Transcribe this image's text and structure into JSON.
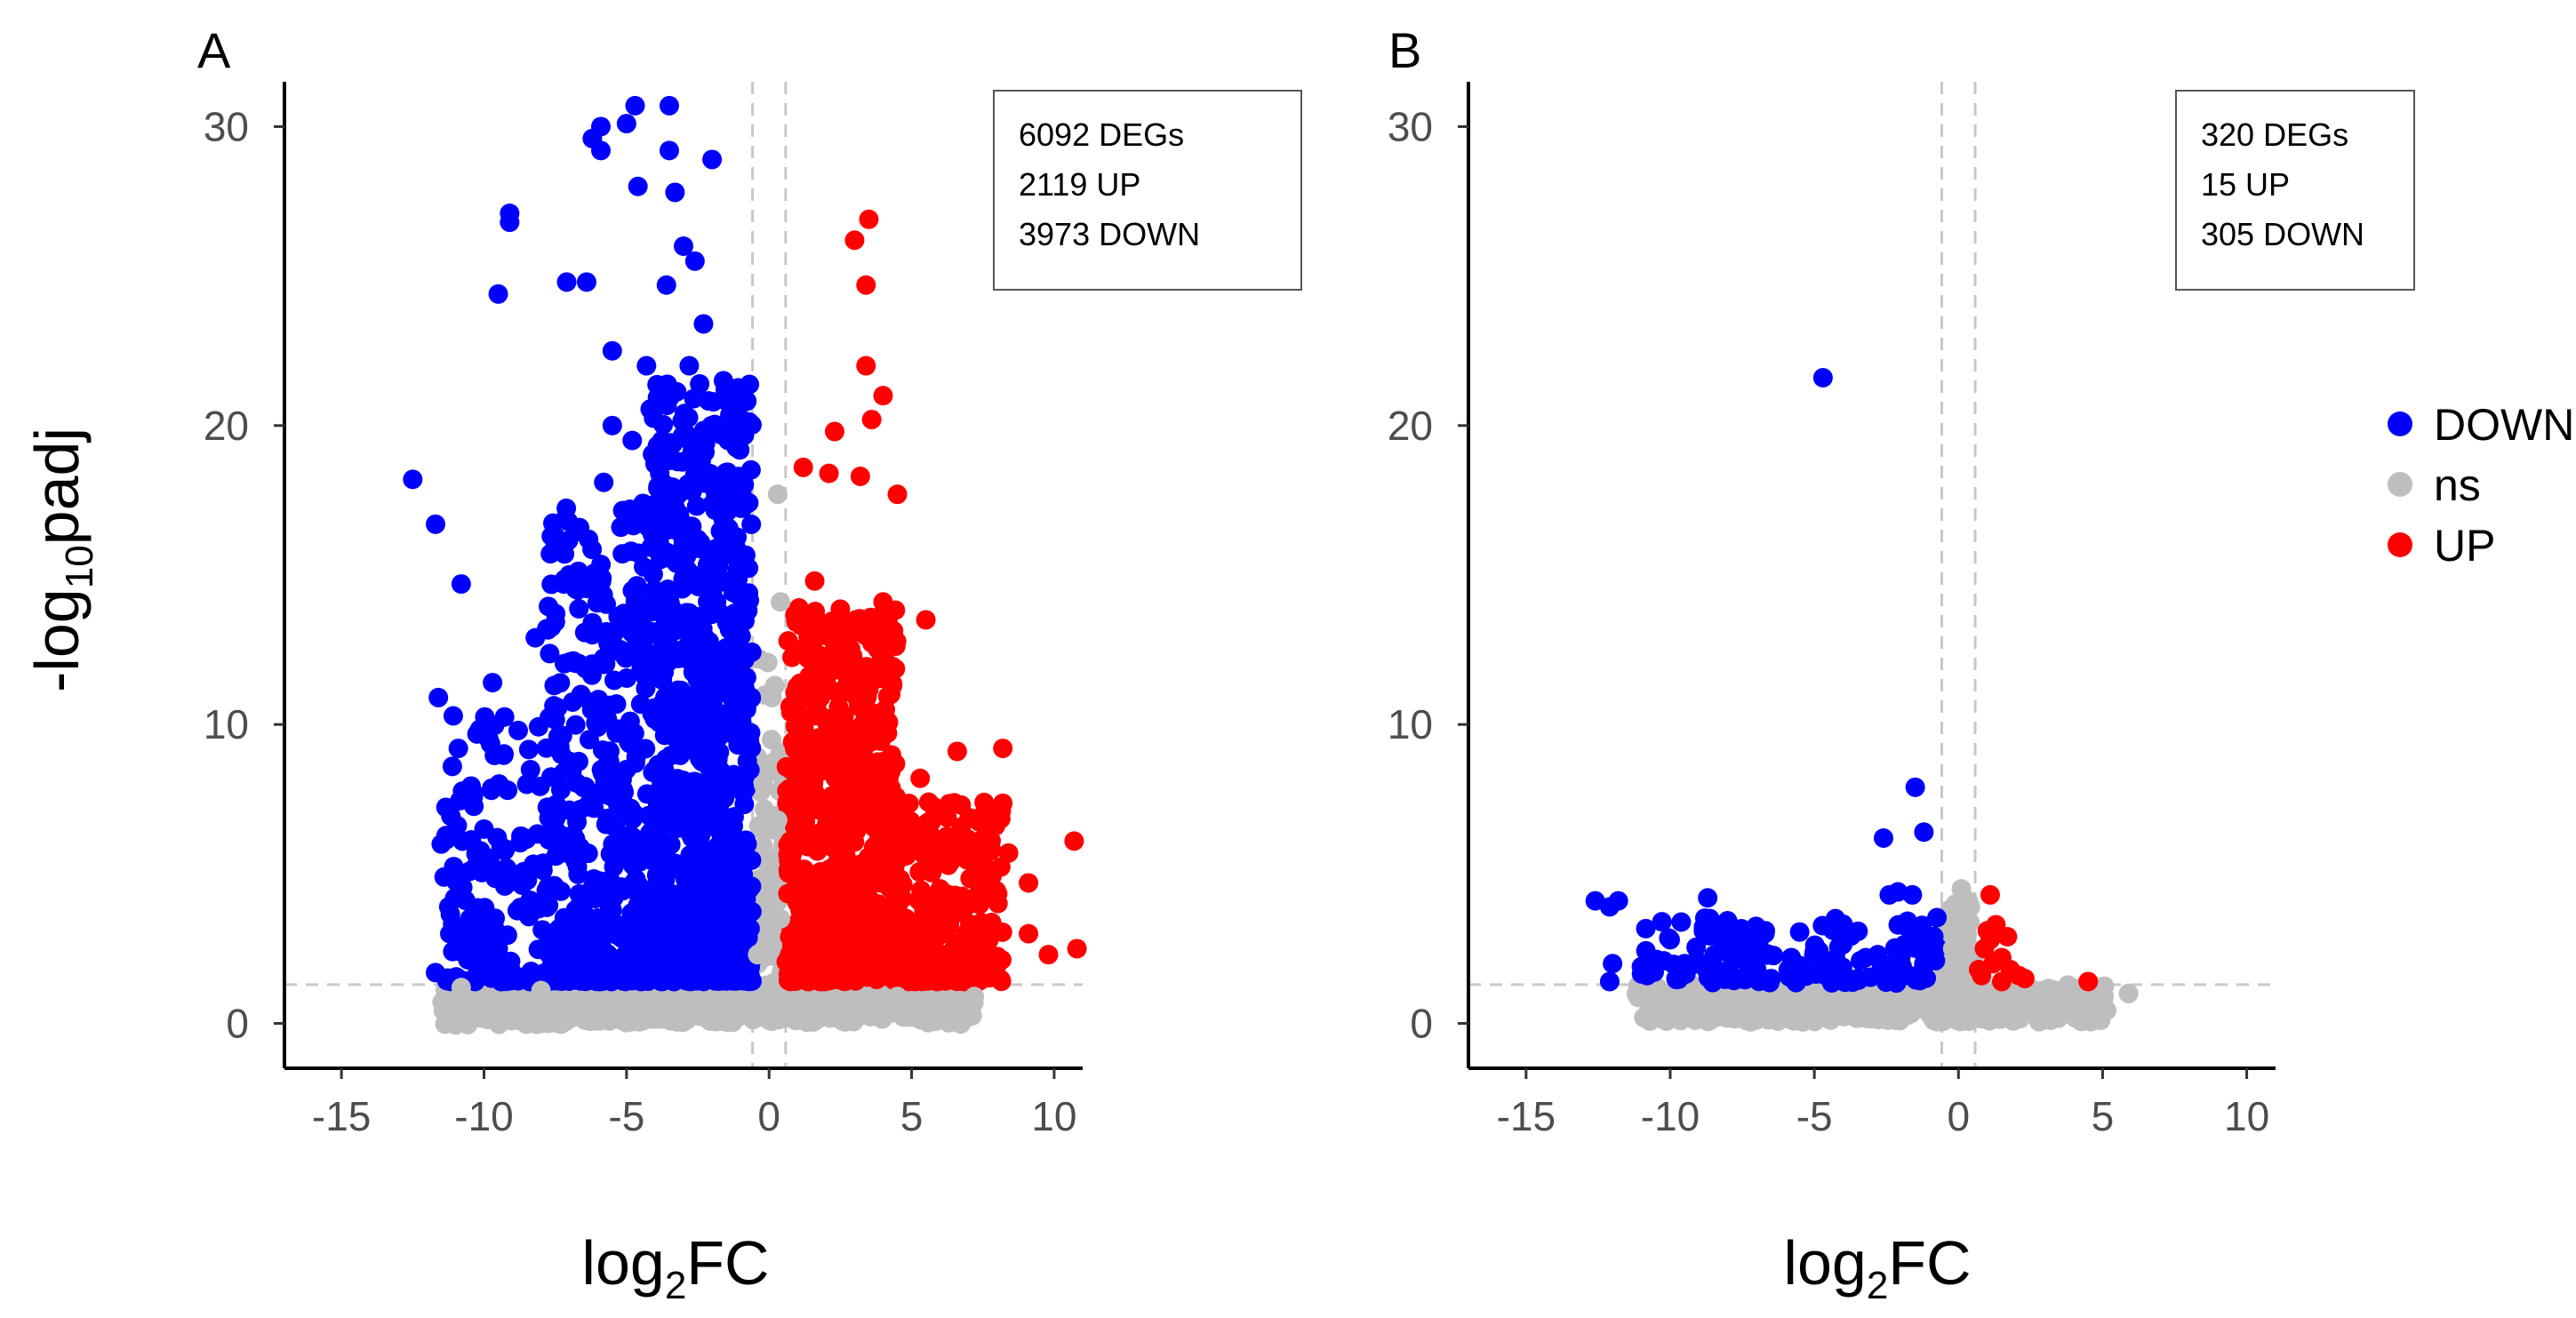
{
  "figure": {
    "y_axis_title": {
      "prefix": "-log",
      "sub": "10",
      "suffix": "padj"
    },
    "x_axis_title": {
      "prefix": "log",
      "sub": "2",
      "suffix": "FC"
    },
    "legend": [
      {
        "label": "DOWN",
        "color": "#0000ff"
      },
      {
        "label": "ns",
        "color": "#bebebe"
      },
      {
        "label": "UP",
        "color": "#ff0000"
      }
    ]
  },
  "chart_data": [
    {
      "type": "scatter",
      "panel": "A",
      "xlabel": "log2FC",
      "ylabel": "-log10padj",
      "xlim": [
        -17,
        11
      ],
      "ylim": [
        -1.5,
        31.5
      ],
      "xticks": [
        -15,
        -10,
        -5,
        0,
        5,
        10
      ],
      "yticks": [
        0,
        10,
        20,
        30
      ],
      "xtick_labels": [
        "-15",
        "-10",
        "-5",
        "0",
        "5",
        "10"
      ],
      "ytick_labels": [
        "0",
        "10",
        "20",
        "30"
      ],
      "thresholds": {
        "log2fc": [
          -0.58,
          0.58
        ],
        "padj_line": 1.3
      },
      "annotation": [
        "6092 DEGs",
        "2119 UP",
        "3973 DOWN"
      ],
      "colors": {
        "DOWN": "#0000ff",
        "ns": "#bebebe",
        "UP": "#ff0000"
      },
      "series": [
        {
          "name": "DOWN",
          "points": [
            [
              -12.5,
              18.2
            ],
            [
              -11.7,
              16.7
            ],
            [
              -10.8,
              14.7
            ],
            [
              -10.9,
              9.2
            ],
            [
              -11.6,
              10.9
            ],
            [
              -11.5,
              6.0
            ],
            [
              -11.2,
              3.0
            ],
            [
              -11.7,
              1.7
            ],
            [
              -9.5,
              24.4
            ],
            [
              -9.1,
              27.1
            ],
            [
              -9.1,
              26.8
            ],
            [
              -8.8,
              9.8
            ],
            [
              -9.7,
              11.4
            ],
            [
              -8.2,
              12.9
            ],
            [
              -7.8,
              13.2
            ],
            [
              -7.5,
              16.0
            ],
            [
              -7.2,
              14.7
            ],
            [
              -7.1,
              24.8
            ],
            [
              -6.4,
              24.8
            ],
            [
              -6.2,
              29.6
            ],
            [
              -5.9,
              29.2
            ],
            [
              -5.9,
              30.0
            ],
            [
              -5.0,
              30.1
            ],
            [
              -4.7,
              30.7
            ],
            [
              -3.5,
              30.7
            ],
            [
              -3.5,
              29.2
            ],
            [
              -2.0,
              28.9
            ],
            [
              -4.6,
              28.0
            ],
            [
              -3.3,
              27.8
            ],
            [
              -2.6,
              25.5
            ],
            [
              -6.2,
              13.0
            ],
            [
              -5.5,
              20.0
            ],
            [
              -4.3,
              22.0
            ],
            [
              -8.5,
              8.0
            ],
            [
              -10.0,
              6.5
            ],
            [
              -9.0,
              5.0
            ],
            [
              -9.5,
              2.5
            ],
            [
              -10.5,
              3.5
            ],
            [
              -8.0,
              4.0
            ],
            [
              -7.4,
              9.6
            ],
            [
              -6.6,
              11.0
            ],
            [
              -6.0,
              7.7
            ],
            [
              -6.8,
              5.5
            ],
            [
              -5.8,
              18.1
            ],
            [
              -5.2,
              16.6
            ],
            [
              -4.8,
              19.5
            ],
            [
              -2.3,
              23.4
            ],
            [
              -1.6,
              21.5
            ],
            [
              -3.0,
              26.0
            ],
            [
              -1.3,
              18.3
            ],
            [
              -5.5,
              22.5
            ],
            [
              -4.1,
              17.2
            ],
            [
              -3.6,
              24.7
            ],
            [
              -2.8,
              22.0
            ],
            [
              -6.2,
              13.4
            ]
          ]
        },
        {
          "name": "UP",
          "points": [
            [
              3.5,
              26.9
            ],
            [
              3.0,
              26.2
            ],
            [
              3.4,
              24.7
            ],
            [
              3.4,
              22.0
            ],
            [
              4.0,
              21.0
            ],
            [
              3.6,
              20.2
            ],
            [
              1.2,
              18.6
            ],
            [
              2.3,
              19.8
            ],
            [
              2.1,
              18.4
            ],
            [
              3.2,
              18.3
            ],
            [
              4.5,
              17.7
            ],
            [
              1.6,
              14.8
            ],
            [
              4.0,
              14.1
            ],
            [
              5.5,
              13.5
            ],
            [
              5.3,
              8.2
            ],
            [
              6.6,
              9.1
            ],
            [
              7.5,
              5.5
            ],
            [
              8.2,
              9.2
            ],
            [
              7.8,
              5.8
            ],
            [
              8.4,
              5.7
            ],
            [
              7.4,
              6.1
            ],
            [
              9.1,
              4.7
            ],
            [
              10.7,
              6.1
            ],
            [
              9.8,
              2.3
            ],
            [
              10.8,
              2.5
            ],
            [
              9.1,
              3.0
            ],
            [
              6.0,
              4.5
            ],
            [
              5.2,
              2.2
            ],
            [
              7.1,
              2.4
            ],
            [
              6.3,
              3.2
            ],
            [
              2.5,
              12.0
            ],
            [
              3.6,
              10.4
            ],
            [
              1.8,
              10.9
            ],
            [
              2.0,
              11.5
            ],
            [
              1.0,
              12.5
            ],
            [
              3.3,
              9.0
            ],
            [
              2.6,
              7.3
            ],
            [
              4.6,
              6.5
            ],
            [
              5.6,
              7.4
            ]
          ]
        },
        {
          "name": "ns",
          "points": [
            [
              0.3,
              17.7
            ],
            [
              0.4,
              14.1
            ],
            [
              0.2,
              11.3
            ],
            [
              0.1,
              10.9
            ],
            [
              -0.2,
              8.0
            ],
            [
              0.3,
              6.8
            ],
            [
              0.0,
              4.2
            ],
            [
              0.4,
              3.5
            ],
            [
              -0.4,
              2.3
            ],
            [
              -6.8,
              0.8
            ],
            [
              -5.0,
              0.4
            ],
            [
              -2.5,
              0.3
            ],
            [
              0.0,
              0.4
            ],
            [
              3.0,
              0.4
            ],
            [
              5.7,
              0.4
            ],
            [
              7.1,
              0.8
            ],
            [
              7.2,
              0.9
            ],
            [
              -10.8,
              1.2
            ],
            [
              -8.0,
              1.1
            ],
            [
              -1.0,
              0.6
            ],
            [
              1.5,
              0.5
            ],
            [
              4.5,
              0.9
            ]
          ]
        }
      ]
    },
    {
      "type": "scatter",
      "panel": "B",
      "xlabel": "log2FC",
      "ylabel": "-log10padj",
      "xlim": [
        -17,
        11
      ],
      "ylim": [
        -1.5,
        31.5
      ],
      "xticks": [
        -15,
        -10,
        -5,
        0,
        5,
        10
      ],
      "yticks": [
        0,
        10,
        20,
        30
      ],
      "xtick_labels": [
        "-15",
        "-10",
        "-5",
        "0",
        "5",
        "10"
      ],
      "ytick_labels": [
        "0",
        "10",
        "20",
        "30"
      ],
      "thresholds": {
        "log2fc": [
          -0.58,
          0.58
        ],
        "padj_line": 1.3
      },
      "annotation": [
        "320 DEGs",
        "15 UP",
        "305 DOWN"
      ],
      "colors": {
        "DOWN": "#0000ff",
        "ns": "#bebebe",
        "UP": "#ff0000"
      },
      "series": [
        {
          "name": "DOWN",
          "points": [
            [
              -4.7,
              21.6
            ],
            [
              -1.5,
              7.9
            ],
            [
              -1.2,
              6.4
            ],
            [
              -2.6,
              6.2
            ],
            [
              -12.6,
              4.1
            ],
            [
              -12.1,
              3.9
            ],
            [
              -11.8,
              4.1
            ],
            [
              -8.7,
              4.2
            ],
            [
              -6.7,
              3.1
            ],
            [
              -4.3,
              3.1
            ],
            [
              -2.4,
              4.3
            ],
            [
              -2.1,
              4.4
            ],
            [
              -1.6,
              4.3
            ],
            [
              -12.0,
              2.0
            ],
            [
              -11.0,
              1.9
            ],
            [
              -10.0,
              2.8
            ],
            [
              -9.5,
              2.0
            ],
            [
              -8.2,
              1.7
            ],
            [
              -7.0,
              1.8
            ],
            [
              -5.8,
              2.2
            ],
            [
              -5.0,
              2.4
            ],
            [
              -4.0,
              2.7
            ],
            [
              -3.4,
              2.1
            ],
            [
              -2.8,
              2.3
            ],
            [
              -2.0,
              2.2
            ],
            [
              -1.2,
              2.0
            ],
            [
              -0.8,
              2.1
            ],
            [
              -12.1,
              1.4
            ],
            [
              -10.8,
              1.6
            ],
            [
              -9.8,
              1.5
            ],
            [
              -6.5,
              1.5
            ],
            [
              -4.6,
              1.6
            ],
            [
              -3.5,
              1.5
            ],
            [
              -1.7,
              1.6
            ]
          ]
        },
        {
          "name": "UP",
          "points": [
            [
              1.1,
              4.3
            ],
            [
              1.0,
              3.1
            ],
            [
              1.1,
              2.8
            ],
            [
              1.5,
              2.2
            ],
            [
              1.2,
              2.0
            ],
            [
              1.8,
              1.8
            ],
            [
              2.1,
              1.6
            ],
            [
              1.5,
              1.4
            ],
            [
              0.8,
              1.6
            ],
            [
              4.5,
              1.4
            ],
            [
              2.3,
              1.5
            ],
            [
              0.9,
              2.5
            ],
            [
              1.7,
              2.9
            ],
            [
              1.3,
              3.3
            ],
            [
              0.7,
              1.8
            ]
          ]
        },
        {
          "name": "ns",
          "points": [
            [
              0.1,
              4.5
            ],
            [
              -0.1,
              4.0
            ],
            [
              0.3,
              3.0
            ],
            [
              -0.2,
              2.5
            ],
            [
              0.0,
              1.8
            ],
            [
              -10.5,
              0.7
            ],
            [
              -8.0,
              0.6
            ],
            [
              -6.0,
              0.5
            ],
            [
              -4.0,
              0.4
            ],
            [
              -2.0,
              0.4
            ],
            [
              0.0,
              0.5
            ],
            [
              2.0,
              0.6
            ],
            [
              4.5,
              0.6
            ],
            [
              5.9,
              1.0
            ],
            [
              4.3,
              0.5
            ],
            [
              -3.0,
              0.8
            ],
            [
              1.0,
              0.9
            ]
          ]
        }
      ]
    }
  ]
}
